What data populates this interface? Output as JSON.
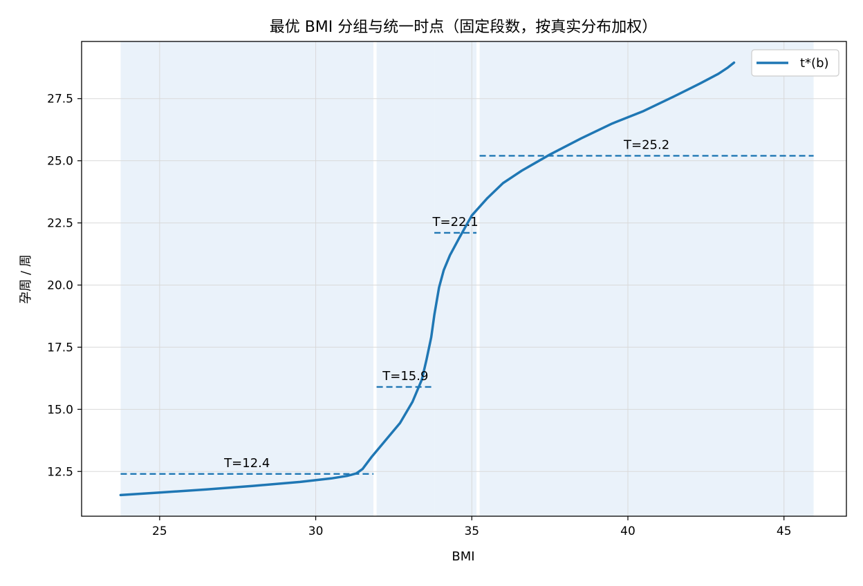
{
  "chart_data": {
    "type": "line",
    "title": "最优 BMI 分组与统一时点（固定段数，按真实分布加权）",
    "xlabel": "BMI",
    "ylabel": "孕周 / 周",
    "xlim": [
      22.5,
      47.0
    ],
    "ylim": [
      10.7,
      29.8
    ],
    "xticks": [
      25,
      30,
      35,
      40,
      45
    ],
    "yticks": [
      12.5,
      15.0,
      17.5,
      20.0,
      22.5,
      25.0,
      27.5
    ],
    "grid": true,
    "legend": {
      "position": "top-right",
      "entries": [
        "t*(b)"
      ]
    },
    "colors": {
      "line": "#1f77b4",
      "band": "#eaf2fa",
      "grid": "#d9d9d9"
    },
    "series": [
      {
        "name": "t*(b)",
        "x": [
          23.75,
          25.0,
          26.5,
          28.0,
          29.5,
          30.5,
          31.0,
          31.3,
          31.5,
          31.8,
          32.2,
          32.7,
          33.1,
          33.4,
          33.55,
          33.7,
          33.8,
          33.95,
          34.1,
          34.3,
          34.6,
          35.0,
          35.5,
          36.0,
          36.6,
          37.5,
          38.5,
          39.5,
          40.5,
          41.5,
          42.3,
          42.9,
          43.2,
          43.4
        ],
        "y": [
          11.55,
          11.65,
          11.78,
          11.92,
          12.08,
          12.22,
          12.32,
          12.42,
          12.6,
          13.1,
          13.7,
          14.45,
          15.3,
          16.2,
          17.0,
          17.9,
          18.8,
          19.9,
          20.6,
          21.2,
          21.9,
          22.8,
          23.5,
          24.1,
          24.6,
          25.25,
          25.9,
          26.5,
          27.0,
          27.6,
          28.1,
          28.5,
          28.75,
          28.95
        ]
      }
    ],
    "segments": [
      {
        "bmi_range": [
          23.75,
          31.85
        ],
        "T": 12.4,
        "label": "T=12.4"
      },
      {
        "bmi_range": [
          31.95,
          33.8
        ],
        "T": 15.9,
        "label": "T=15.9"
      },
      {
        "bmi_range": [
          33.8,
          35.15
        ],
        "T": 22.1,
        "label": "T=22.1"
      },
      {
        "bmi_range": [
          35.25,
          45.95
        ],
        "T": 25.2,
        "label": "T=25.2"
      }
    ]
  }
}
